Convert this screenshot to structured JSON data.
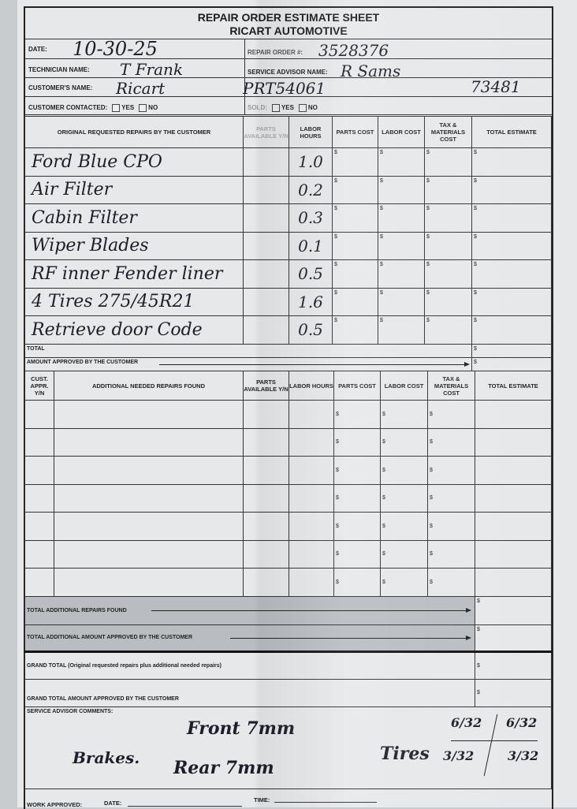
{
  "header": {
    "title": "REPAIR ORDER ESTIMATE SHEET",
    "company": "RICART AUTOMOTIVE"
  },
  "fields": {
    "date_label": "DATE:",
    "date_value": "10-30-25",
    "repair_order_label": "REPAIR ORDER #:",
    "repair_order_value": "3528376",
    "technician_label": "TECHNICIAN NAME:",
    "technician_value": "T Frank",
    "service_advisor_label": "SERVICE ADVISOR NAME:",
    "service_advisor_value": "R Sams",
    "customer_label": "CUSTOMER'S NAME:",
    "customer_value": "Ricart",
    "customer_extra_1": "PRT54061",
    "customer_extra_2": "73481",
    "contacted_label": "CUSTOMER CONTACTED:",
    "yes": "YES",
    "no": "NO",
    "sold_label": "SOLD:"
  },
  "original": {
    "headers": [
      "ORIGINAL REQUESTED REPAIRS BY THE CUSTOMER",
      "PARTS AVAILABLE Y/N",
      "LABOR HOURS",
      "PARTS COST",
      "LABOR COST",
      "TAX & MATERIALS COST",
      "TOTAL ESTIMATE"
    ],
    "currency": "$",
    "rows": [
      {
        "desc": "Ford Blue CPO",
        "hours": "1.0"
      },
      {
        "desc": "Air Filter",
        "hours": "0.2"
      },
      {
        "desc": "Cabin Filter",
        "hours": "0.3"
      },
      {
        "desc": "Wiper Blades",
        "hours": "0.1"
      },
      {
        "desc": "RF inner Fender liner",
        "hours": "0.5"
      },
      {
        "desc": "4 Tires 275/45R21",
        "hours": "1.6"
      },
      {
        "desc": "Retrieve door Code",
        "hours": "0.5"
      }
    ],
    "total_label": "TOTAL",
    "approved_label": "AMOUNT APPROVED BY THE CUSTOMER"
  },
  "additional": {
    "headers": [
      "CUST. APPR. Y/N",
      "ADDITIONAL NEEDED REPAIRS FOUND",
      "PARTS AVAILABLE Y/N",
      "LABOR HOURS",
      "PARTS COST",
      "LABOR COST",
      "TAX & MATERIALS COST",
      "TOTAL ESTIMATE"
    ],
    "row_count": 7,
    "total_label": "TOTAL ADDITIONAL REPAIRS FOUND",
    "approved_label": "TOTAL ADDITIONAL AMOUNT APPROVED BY THE CUSTOMER"
  },
  "grand": {
    "total_label": "GRAND TOTAL (Original requested repairs plus additional needed repairs)",
    "approved_label": "GRAND TOTAL AMOUNT APPROVED BY THE CUSTOMER"
  },
  "comments": {
    "label": "SERVICE ADVISOR COMMENTS:",
    "brakes": "Brakes.",
    "front": "Front 7mm",
    "rear": "Rear 7mm",
    "tires": "Tires",
    "t1": "6/32",
    "t2": "6/32",
    "t3": "3/32",
    "t4": "3/32"
  },
  "footer": {
    "work_approved": "WORK APPROVED:",
    "date": "DATE:",
    "time": "TIME:"
  }
}
